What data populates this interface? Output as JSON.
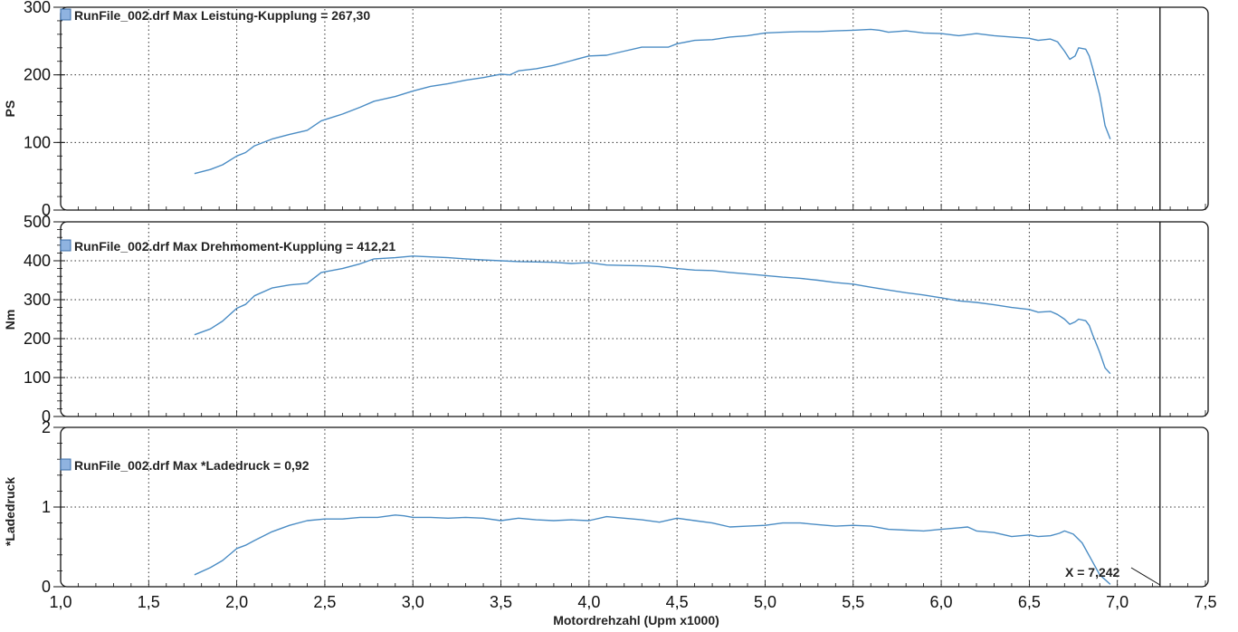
{
  "x_axis": {
    "label": "Motordrehzahl (Upm x1000)",
    "range": [
      1.0,
      7.5
    ],
    "ticks": [
      "1,0",
      "1,5",
      "2,0",
      "2,5",
      "3,0",
      "3,5",
      "4,0",
      "4,5",
      "5,0",
      "5,5",
      "6,0",
      "6,5",
      "7,0",
      "7,5"
    ]
  },
  "cursor": {
    "x": 7.242,
    "label": "X = 7,242"
  },
  "colors": {
    "line": "#4a8cc4",
    "grid": "#333333",
    "frame": "#111111"
  },
  "chart_data": [
    {
      "type": "line",
      "annotation": "RunFile_002.drf Max Leistung-Kupplung = 267,30",
      "ylabel": "PS",
      "ylim": [
        0,
        300
      ],
      "yticks": [
        "0",
        "100",
        "200",
        "300"
      ],
      "grid": true,
      "series": [
        {
          "points": [
            [
              1.76,
              54
            ],
            [
              1.85,
              60
            ],
            [
              1.92,
              67
            ],
            [
              2.0,
              80
            ],
            [
              2.05,
              85
            ],
            [
              2.1,
              95
            ],
            [
              2.2,
              105
            ],
            [
              2.3,
              112
            ],
            [
              2.4,
              118
            ],
            [
              2.48,
              132
            ],
            [
              2.6,
              142
            ],
            [
              2.7,
              152
            ],
            [
              2.78,
              161
            ],
            [
              2.9,
              168
            ],
            [
              3.0,
              176
            ],
            [
              3.1,
              183
            ],
            [
              3.2,
              187
            ],
            [
              3.3,
              192
            ],
            [
              3.4,
              196
            ],
            [
              3.5,
              201
            ],
            [
              3.55,
              200
            ],
            [
              3.6,
              206
            ],
            [
              3.7,
              209
            ],
            [
              3.8,
              214
            ],
            [
              3.9,
              221
            ],
            [
              4.0,
              228
            ],
            [
              4.1,
              229
            ],
            [
              4.2,
              235
            ],
            [
              4.3,
              241
            ],
            [
              4.45,
              241
            ],
            [
              4.5,
              246
            ],
            [
              4.6,
              251
            ],
            [
              4.7,
              252
            ],
            [
              4.8,
              256
            ],
            [
              4.9,
              258
            ],
            [
              5.0,
              262
            ],
            [
              5.1,
              263
            ],
            [
              5.2,
              264
            ],
            [
              5.3,
              264
            ],
            [
              5.4,
              265
            ],
            [
              5.5,
              266
            ],
            [
              5.6,
              267.3
            ],
            [
              5.65,
              266
            ],
            [
              5.7,
              263
            ],
            [
              5.8,
              265
            ],
            [
              5.9,
              262
            ],
            [
              6.0,
              261
            ],
            [
              6.1,
              258
            ],
            [
              6.2,
              261
            ],
            [
              6.3,
              258
            ],
            [
              6.4,
              256
            ],
            [
              6.5,
              254
            ],
            [
              6.55,
              251
            ],
            [
              6.62,
              253
            ],
            [
              6.66,
              249
            ],
            [
              6.7,
              235
            ],
            [
              6.73,
              223
            ],
            [
              6.76,
              228
            ],
            [
              6.78,
              240
            ],
            [
              6.82,
              238
            ],
            [
              6.84,
              228
            ],
            [
              6.86,
              210
            ],
            [
              6.9,
              170
            ],
            [
              6.93,
              125
            ],
            [
              6.96,
              105
            ]
          ]
        }
      ]
    },
    {
      "type": "line",
      "annotation": "RunFile_002.drf Max Drehmoment-Kupplung = 412,21",
      "ylabel": "Nm",
      "ylim": [
        0,
        500
      ],
      "yticks": [
        "0",
        "100",
        "200",
        "300",
        "400",
        "500"
      ],
      "grid": true,
      "series": [
        {
          "points": [
            [
              1.76,
              210
            ],
            [
              1.85,
              225
            ],
            [
              1.92,
              245
            ],
            [
              2.0,
              278
            ],
            [
              2.05,
              288
            ],
            [
              2.1,
              310
            ],
            [
              2.2,
              330
            ],
            [
              2.3,
              338
            ],
            [
              2.4,
              342
            ],
            [
              2.48,
              370
            ],
            [
              2.6,
              380
            ],
            [
              2.7,
              392
            ],
            [
              2.78,
              405
            ],
            [
              2.9,
              408
            ],
            [
              3.0,
              412.2
            ],
            [
              3.1,
              410
            ],
            [
              3.2,
              408
            ],
            [
              3.3,
              405
            ],
            [
              3.4,
              402
            ],
            [
              3.5,
              400
            ],
            [
              3.6,
              398
            ],
            [
              3.7,
              397
            ],
            [
              3.8,
              396
            ],
            [
              3.9,
              393
            ],
            [
              4.0,
              395
            ],
            [
              4.1,
              389
            ],
            [
              4.2,
              388
            ],
            [
              4.3,
              387
            ],
            [
              4.4,
              385
            ],
            [
              4.5,
              380
            ],
            [
              4.6,
              376
            ],
            [
              4.7,
              375
            ],
            [
              4.8,
              370
            ],
            [
              4.9,
              366
            ],
            [
              5.0,
              362
            ],
            [
              5.1,
              358
            ],
            [
              5.2,
              355
            ],
            [
              5.3,
              350
            ],
            [
              5.4,
              344
            ],
            [
              5.5,
              340
            ],
            [
              5.6,
              332
            ],
            [
              5.7,
              325
            ],
            [
              5.8,
              318
            ],
            [
              5.9,
              312
            ],
            [
              6.0,
              305
            ],
            [
              6.1,
              297
            ],
            [
              6.2,
              293
            ],
            [
              6.3,
              287
            ],
            [
              6.4,
              280
            ],
            [
              6.5,
              275
            ],
            [
              6.55,
              268
            ],
            [
              6.62,
              270
            ],
            [
              6.66,
              262
            ],
            [
              6.7,
              250
            ],
            [
              6.73,
              237
            ],
            [
              6.76,
              243
            ],
            [
              6.78,
              250
            ],
            [
              6.82,
              246
            ],
            [
              6.84,
              234
            ],
            [
              6.86,
              210
            ],
            [
              6.9,
              165
            ],
            [
              6.93,
              125
            ],
            [
              6.96,
              110
            ]
          ]
        }
      ]
    },
    {
      "type": "line",
      "annotation": "RunFile_002.drf Max *Ladedruck  = 0,92",
      "ylabel": "*Ladedruck",
      "ylim": [
        0,
        2
      ],
      "yticks": [
        "0",
        "1",
        "2"
      ],
      "grid": true,
      "series": [
        {
          "points": [
            [
              1.76,
              0.15
            ],
            [
              1.85,
              0.24
            ],
            [
              1.92,
              0.33
            ],
            [
              2.0,
              0.48
            ],
            [
              2.05,
              0.52
            ],
            [
              2.1,
              0.58
            ],
            [
              2.2,
              0.69
            ],
            [
              2.3,
              0.77
            ],
            [
              2.4,
              0.83
            ],
            [
              2.5,
              0.85
            ],
            [
              2.6,
              0.85
            ],
            [
              2.7,
              0.87
            ],
            [
              2.8,
              0.87
            ],
            [
              2.9,
              0.9
            ],
            [
              2.95,
              0.89
            ],
            [
              3.0,
              0.87
            ],
            [
              3.1,
              0.87
            ],
            [
              3.2,
              0.86
            ],
            [
              3.3,
              0.87
            ],
            [
              3.4,
              0.86
            ],
            [
              3.5,
              0.83
            ],
            [
              3.6,
              0.86
            ],
            [
              3.7,
              0.84
            ],
            [
              3.8,
              0.83
            ],
            [
              3.9,
              0.84
            ],
            [
              4.0,
              0.83
            ],
            [
              4.1,
              0.88
            ],
            [
              4.2,
              0.86
            ],
            [
              4.3,
              0.84
            ],
            [
              4.4,
              0.81
            ],
            [
              4.5,
              0.86
            ],
            [
              4.6,
              0.83
            ],
            [
              4.7,
              0.8
            ],
            [
              4.8,
              0.75
            ],
            [
              4.9,
              0.76
            ],
            [
              5.0,
              0.77
            ],
            [
              5.1,
              0.8
            ],
            [
              5.2,
              0.8
            ],
            [
              5.3,
              0.78
            ],
            [
              5.4,
              0.76
            ],
            [
              5.5,
              0.77
            ],
            [
              5.6,
              0.76
            ],
            [
              5.7,
              0.72
            ],
            [
              5.8,
              0.71
            ],
            [
              5.9,
              0.7
            ],
            [
              6.0,
              0.72
            ],
            [
              6.1,
              0.74
            ],
            [
              6.15,
              0.75
            ],
            [
              6.2,
              0.7
            ],
            [
              6.3,
              0.68
            ],
            [
              6.4,
              0.63
            ],
            [
              6.5,
              0.65
            ],
            [
              6.55,
              0.63
            ],
            [
              6.62,
              0.64
            ],
            [
              6.67,
              0.67
            ],
            [
              6.7,
              0.7
            ],
            [
              6.75,
              0.66
            ],
            [
              6.8,
              0.55
            ],
            [
              6.85,
              0.35
            ],
            [
              6.9,
              0.15
            ],
            [
              6.96,
              0.03
            ]
          ]
        }
      ]
    }
  ]
}
